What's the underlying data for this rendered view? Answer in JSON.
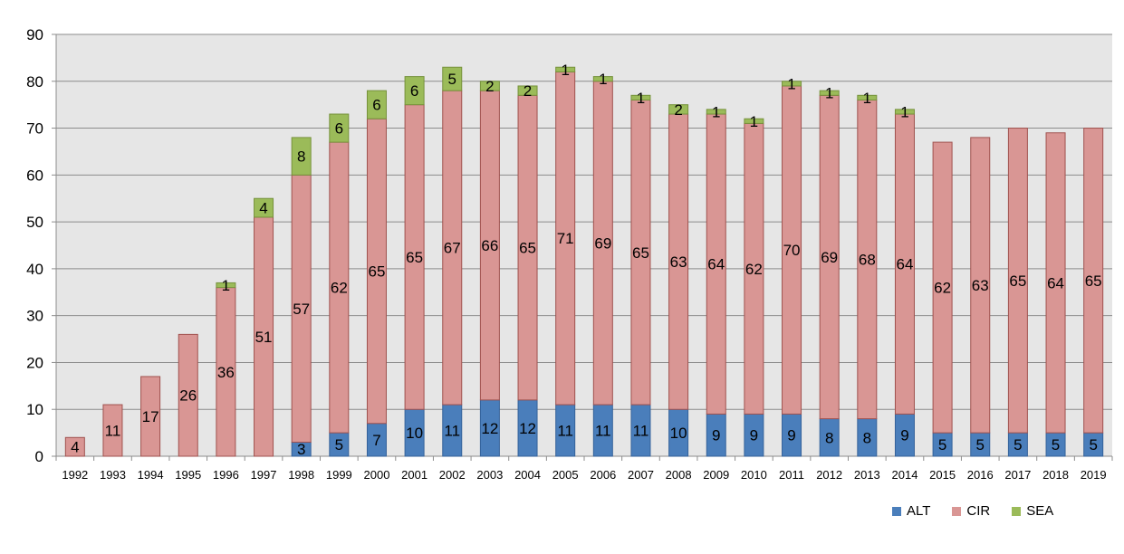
{
  "chart_data": {
    "type": "bar",
    "stacked": true,
    "categories": [
      "1992",
      "1993",
      "1994",
      "1995",
      "1996",
      "1997",
      "1998",
      "1999",
      "2000",
      "2001",
      "2002",
      "2003",
      "2004",
      "2005",
      "2006",
      "2007",
      "2008",
      "2009",
      "2010",
      "2011",
      "2012",
      "2013",
      "2014",
      "2015",
      "2016",
      "2017",
      "2018",
      "2019"
    ],
    "series": [
      {
        "name": "ALT",
        "color": "#4a7ebb",
        "values": [
          0,
          0,
          0,
          0,
          0,
          0,
          3,
          5,
          7,
          10,
          11,
          12,
          12,
          11,
          11,
          11,
          10,
          9,
          9,
          9,
          8,
          8,
          9,
          5,
          5,
          5,
          5,
          5
        ]
      },
      {
        "name": "CIR",
        "color": "#d99694",
        "values": [
          4,
          11,
          17,
          26,
          36,
          51,
          57,
          62,
          65,
          65,
          67,
          66,
          65,
          71,
          69,
          65,
          63,
          64,
          62,
          70,
          69,
          68,
          64,
          62,
          63,
          65,
          64,
          65
        ]
      },
      {
        "name": "SEA",
        "color": "#9bbb59",
        "values": [
          0,
          0,
          0,
          0,
          1,
          4,
          8,
          6,
          6,
          6,
          5,
          2,
          2,
          1,
          1,
          1,
          2,
          1,
          1,
          1,
          1,
          1,
          1,
          0,
          0,
          0,
          0,
          0
        ]
      }
    ],
    "ylim": [
      0,
      90
    ],
    "yticks": [
      "0",
      "10",
      "20",
      "30",
      "40",
      "50",
      "60",
      "70",
      "80",
      "90"
    ],
    "grid": true,
    "legend_position": "bottom-right",
    "plot_background": "#e6e6e6",
    "title": "",
    "xlabel": "",
    "ylabel": ""
  }
}
